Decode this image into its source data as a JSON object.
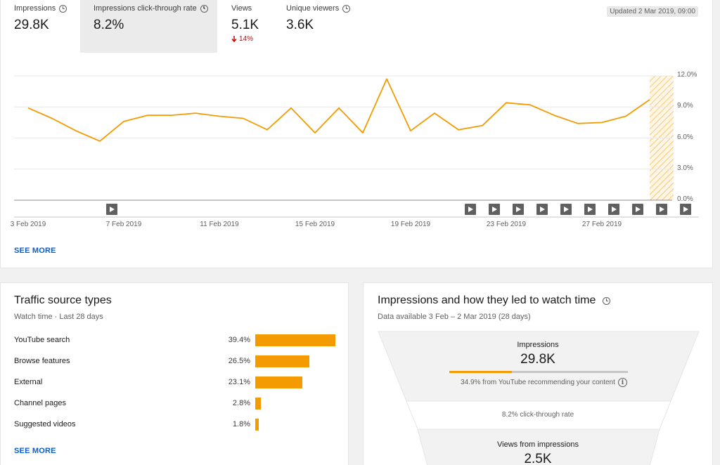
{
  "metrics": [
    {
      "label": "Impressions",
      "value": "29.8K",
      "has_clock": true,
      "selected": false
    },
    {
      "label": "Impressions click-through rate",
      "value": "8.2%",
      "has_clock": true,
      "selected": true
    },
    {
      "label": "Views",
      "value": "5.1K",
      "delta": "14%",
      "delta_direction": "down",
      "has_clock": false,
      "selected": false
    },
    {
      "label": "Unique viewers",
      "value": "3.6K",
      "has_clock": true,
      "selected": false
    }
  ],
  "updated": "Updated 2 Mar 2019, 09:00",
  "chart_data": {
    "type": "line",
    "x": [
      "2019-02-03",
      "2019-02-04",
      "2019-02-05",
      "2019-02-06",
      "2019-02-07",
      "2019-02-08",
      "2019-02-09",
      "2019-02-10",
      "2019-02-11",
      "2019-02-12",
      "2019-02-13",
      "2019-02-14",
      "2019-02-15",
      "2019-02-16",
      "2019-02-17",
      "2019-02-18",
      "2019-02-19",
      "2019-02-20",
      "2019-02-21",
      "2019-02-22",
      "2019-02-23",
      "2019-02-24",
      "2019-02-25",
      "2019-02-26",
      "2019-02-27",
      "2019-02-28",
      "2019-03-01"
    ],
    "series": [
      {
        "values": [
          8.9,
          7.9,
          6.7,
          5.7,
          7.6,
          8.2,
          8.2,
          8.4,
          8.1,
          7.9,
          6.8,
          8.9,
          6.5,
          8.9,
          6.5,
          11.7,
          6.7,
          8.4,
          6.8,
          7.2,
          9.4,
          9.2,
          8.2,
          7.4,
          7.5,
          8.1,
          9.7
        ]
      }
    ],
    "x_tick_labels": [
      "3 Feb 2019",
      "7 Feb 2019",
      "11 Feb 2019",
      "15 Feb 2019",
      "19 Feb 2019",
      "23 Feb 2019",
      "27 Feb 2019"
    ],
    "y_tick_labels": [
      "12.0%",
      "9.0%",
      "6.0%",
      "3.0%",
      "0.0%"
    ],
    "ylim": [
      0,
      12
    ],
    "unit": "%",
    "line_color": "#f39b00",
    "grid": true,
    "y_axis_position": "right",
    "highlighted_last_day": true,
    "video_markers": [
      "2019-02-06",
      "2019-02-21",
      "2019-02-22",
      "2019-02-23",
      "2019-02-24",
      "2019-02-25",
      "2019-02-26",
      "2019-02-27",
      "2019-02-28",
      "2019-03-01",
      "2019-03-02"
    ]
  },
  "see_more": "SEE MORE",
  "traffic": {
    "title": "Traffic source types",
    "subtitle": "Watch time · Last 28 days",
    "rows": [
      {
        "label": "YouTube search",
        "pct_label": "39.4%",
        "value": 39.4
      },
      {
        "label": "Browse features",
        "pct_label": "26.5%",
        "value": 26.5
      },
      {
        "label": "External",
        "pct_label": "23.1%",
        "value": 23.1
      },
      {
        "label": "Channel pages",
        "pct_label": "2.8%",
        "value": 2.8
      },
      {
        "label": "Suggested videos",
        "pct_label": "1.8%",
        "value": 1.8
      }
    ],
    "bar_color": "#f39b00"
  },
  "funnel": {
    "title": "Impressions and how they led to watch time",
    "subtitle": "Data available 3 Feb – 2 Mar 2019 (28 days)",
    "impressions_label": "Impressions",
    "impressions_value": "29.8K",
    "recommend_fraction": 0.349,
    "recommend_text": "34.9% from YouTube recommending your content",
    "ctr_text": "8.2% click-through rate",
    "views_label": "Views from impressions",
    "views_value": "2.5K"
  }
}
